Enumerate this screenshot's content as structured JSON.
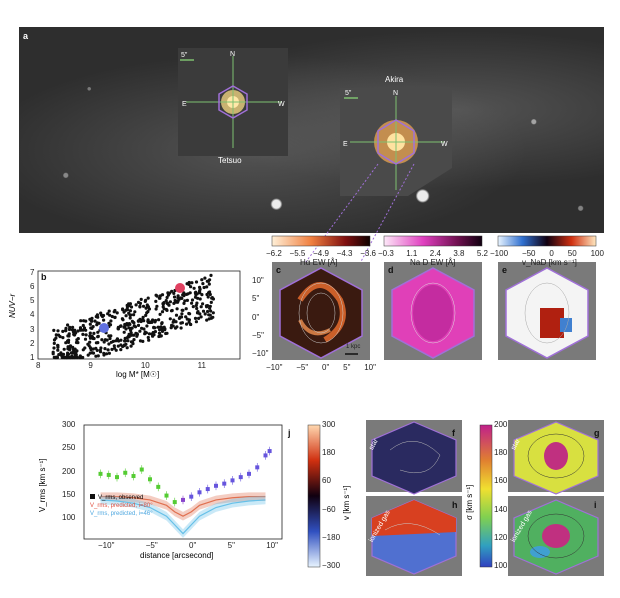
{
  "panel_a": {
    "letter": "a",
    "tetsuo": {
      "label": "Tetsuo",
      "scale": "5\"",
      "N": "N",
      "E": "E",
      "W": "W"
    },
    "akira": {
      "label": "Akira",
      "scale": "5\"",
      "N": "N",
      "E": "E",
      "W": "W"
    }
  },
  "colorbars": {
    "halpha": {
      "ticks": [
        "−6.2",
        "−5.5",
        "−4.9",
        "−4.3",
        "−3.6"
      ],
      "label": "Hα EW [Å]"
    },
    "nad": {
      "ticks": [
        "−0.3",
        "1.1",
        "2.4",
        "3.8",
        "5.2"
      ],
      "label": "Na D EW [Å]"
    },
    "vnad": {
      "ticks": [
        "−100",
        "−50",
        "0",
        "50",
        "100"
      ],
      "label": "v_NaD [km s⁻¹]"
    },
    "velocity": {
      "ticks": [
        "300",
        "180",
        "60",
        "−60",
        "−180",
        "−300"
      ],
      "label": "v [km s⁻¹]"
    },
    "sigma": {
      "ticks": [
        "200",
        "180",
        "160",
        "140",
        "120",
        "100"
      ],
      "label": "σ [km s⁻¹]"
    }
  },
  "panel_b": {
    "letter": "b",
    "xlabel": "log M* [M☉]",
    "ylabel": "NUV−r",
    "xticks": [
      "8",
      "9",
      "10",
      "11"
    ],
    "yticks": [
      "1",
      "2",
      "3",
      "4",
      "5",
      "6",
      "7"
    ]
  },
  "maps": {
    "c": {
      "letter": "c",
      "xticks": [
        "−10\"",
        "−5\"",
        "0\"",
        "5\"",
        "10\""
      ],
      "yticks": [
        "10\"",
        "5\"",
        "0\"",
        "−5\"",
        "−10\""
      ],
      "scalebar": "1 kpc"
    },
    "d": {
      "letter": "d"
    },
    "e": {
      "letter": "e"
    },
    "f": {
      "letter": "f",
      "side": "star"
    },
    "g": {
      "letter": "g",
      "side": "star"
    },
    "h": {
      "letter": "h",
      "side": "ionized gas"
    },
    "i": {
      "letter": "i",
      "side": "ionized gas"
    }
  },
  "chart_data": {
    "type": "scatter",
    "letter": "j",
    "xlabel": "distance [arcsecond]",
    "ylabel": "V_rms [km s⁻¹]",
    "xticks": [
      "−10\"",
      "−5\"",
      "0\"",
      "5\"",
      "10\""
    ],
    "yticks": [
      "100",
      "150",
      "200",
      "250",
      "300"
    ],
    "xlim": [
      -12,
      12
    ],
    "ylim": [
      100,
      310
    ],
    "legend": {
      "observed": "V_rms, observed",
      "predicted_red": "V_rms, predicted, i=80°",
      "predicted_blue": "V_rms, predicted, i=46°"
    },
    "observed": {
      "x": [
        -10,
        -9,
        -8,
        -7,
        -6,
        -5,
        -4,
        -3,
        -2,
        -1,
        0,
        1,
        2,
        3,
        4,
        5,
        6,
        7,
        8,
        9,
        10,
        10.5
      ],
      "y": [
        220,
        218,
        214,
        222,
        216,
        228,
        210,
        196,
        180,
        168,
        172,
        178,
        186,
        192,
        198,
        202,
        208,
        214,
        220,
        232,
        254,
        262
      ],
      "colors": [
        "#55cc33",
        "#55cc33",
        "#55cc33",
        "#55cc33",
        "#55cc33",
        "#55cc33",
        "#55cc33",
        "#55cc33",
        "#55cc33",
        "#55cc33",
        "#8844cc",
        "#6655dd",
        "#6655dd",
        "#6655dd",
        "#6655dd",
        "#6655dd",
        "#6655dd",
        "#6655dd",
        "#6655dd",
        "#6655dd",
        "#6655dd",
        "#6655dd"
      ]
    },
    "predicted_red": {
      "x": [
        -10,
        -8,
        -6,
        -4,
        -2,
        -1,
        0,
        1,
        2,
        4,
        6,
        8,
        10
      ],
      "y": [
        178,
        178,
        176,
        172,
        162,
        150,
        142,
        150,
        162,
        172,
        176,
        178,
        178
      ]
    },
    "predicted_blue": {
      "x": [
        -10,
        -8,
        -6,
        -4,
        -2,
        -1,
        0,
        1,
        2,
        4,
        6,
        8,
        10
      ],
      "y": [
        172,
        170,
        166,
        158,
        142,
        126,
        110,
        126,
        142,
        158,
        166,
        170,
        172
      ]
    }
  },
  "colors": {
    "observed": "#2244aa",
    "red": "#e07050",
    "blue": "#66c0e8",
    "hex": "#a070d8"
  }
}
